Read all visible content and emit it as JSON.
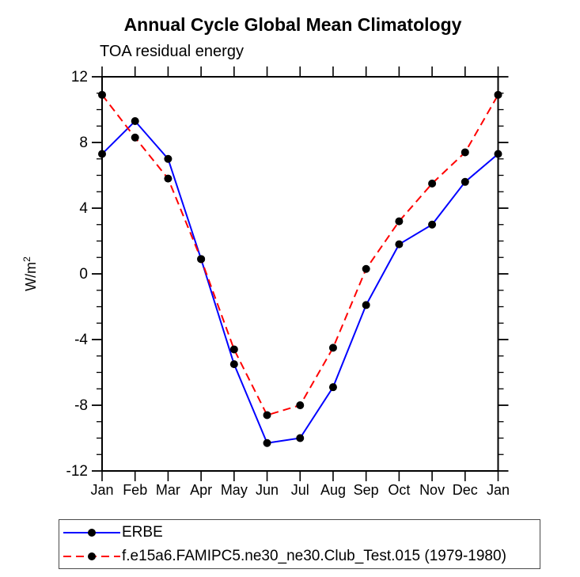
{
  "title": "Annual Cycle Global Mean Climatology",
  "subtitle": "TOA residual energy",
  "chart_data": {
    "type": "line",
    "title": "Annual Cycle Global Mean Climatology",
    "subtitle": "TOA residual energy",
    "ylabel": "W/m",
    "ylabel_sup": "2",
    "categories": [
      "Jan",
      "Feb",
      "Mar",
      "Apr",
      "May",
      "Jun",
      "Jul",
      "Aug",
      "Sep",
      "Oct",
      "Nov",
      "Dec",
      "Jan"
    ],
    "ylim": [
      -12,
      12
    ],
    "ytick_major": [
      -12,
      -8,
      -4,
      0,
      4,
      8,
      12
    ],
    "ytick_minor_step": 1,
    "grid": false,
    "legend_position": "bottom-left-box",
    "marker_color": "#000000",
    "axis_color": "#000000",
    "series": [
      {
        "name": "ERBE",
        "color": "#0000ff",
        "style": "solid",
        "marker": "circle",
        "values": [
          7.3,
          9.3,
          7.0,
          0.9,
          -5.5,
          -10.3,
          -10.0,
          -6.9,
          -1.9,
          1.8,
          3.0,
          5.6,
          7.3
        ]
      },
      {
        "name": "f.e15a6.FAMIPC5.ne30_ne30.Club_Test.015 (1979-1980)",
        "color": "#ff0000",
        "style": "dashed",
        "marker": "circle",
        "values": [
          10.9,
          8.3,
          5.8,
          0.9,
          -4.6,
          -8.6,
          -8.0,
          -4.5,
          0.3,
          3.2,
          5.5,
          7.4,
          10.9
        ]
      }
    ]
  }
}
